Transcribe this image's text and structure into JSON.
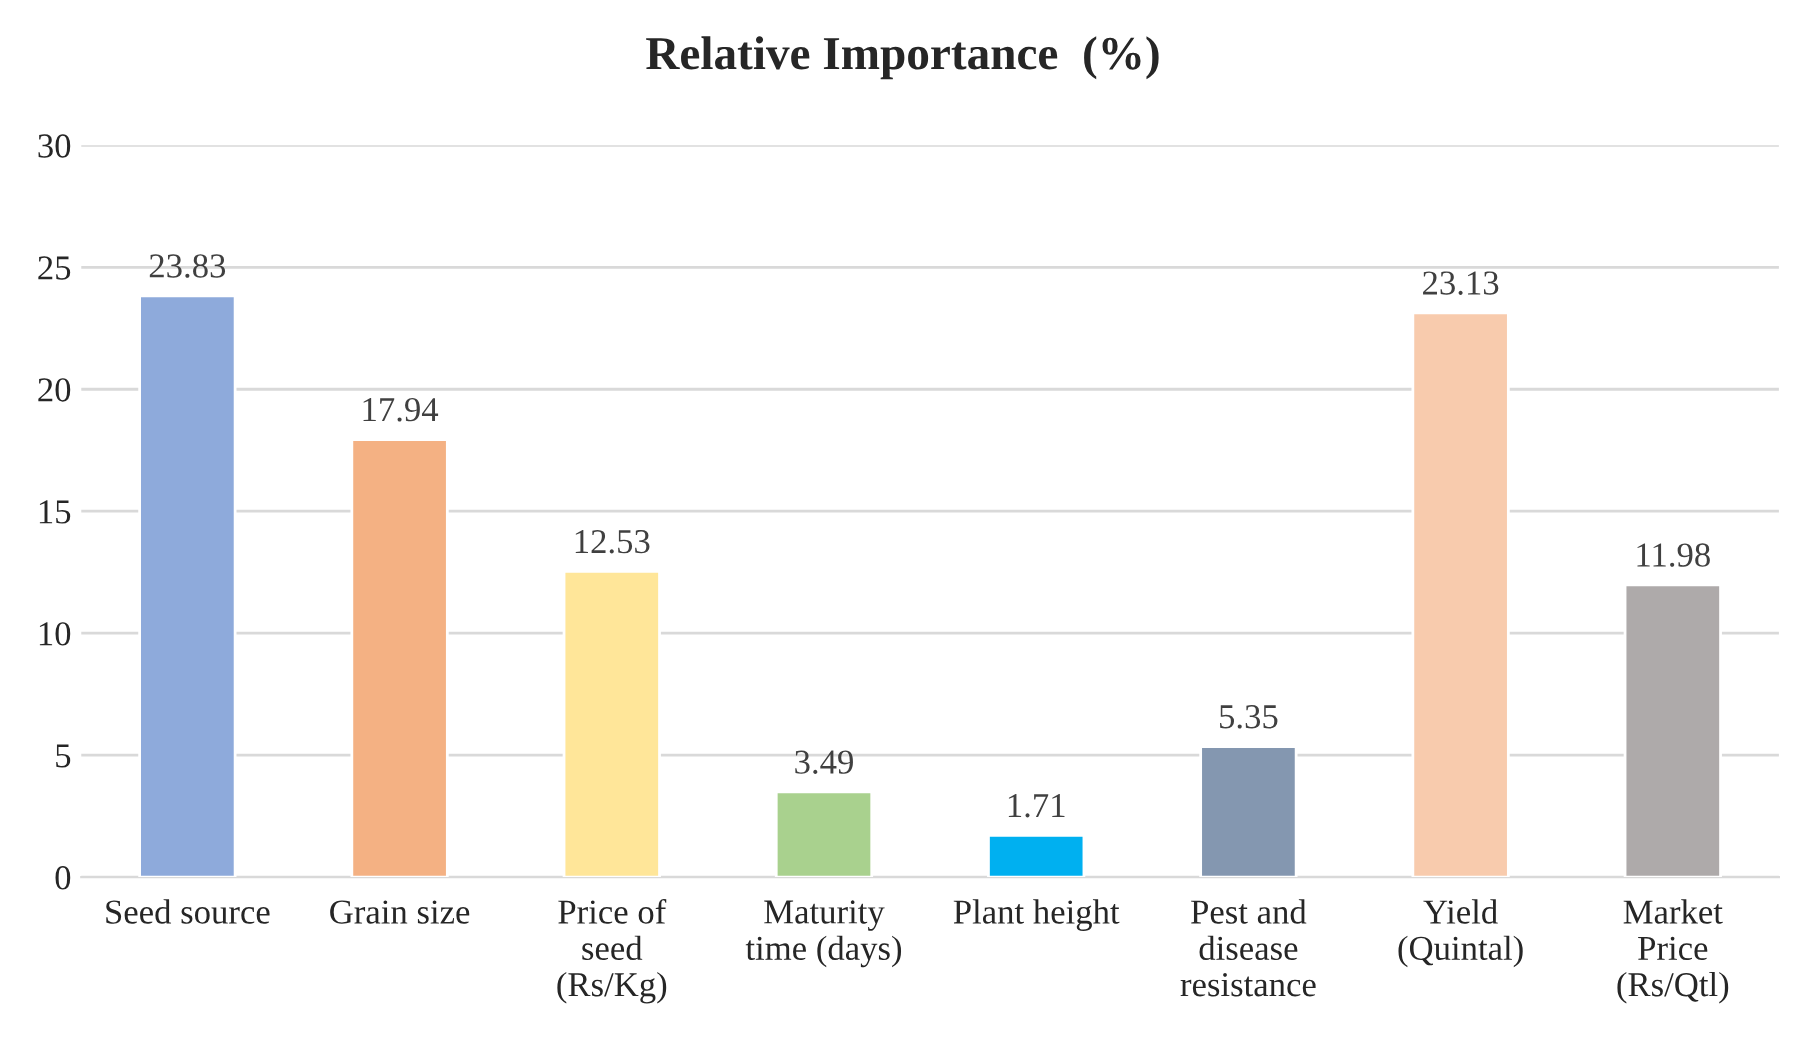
{
  "chart_data": {
    "type": "bar",
    "title": "Relative Importance  (%)",
    "categories": [
      "Seed source",
      "Grain size",
      "Price of\nseed\n(Rs/Kg)",
      "Maturity\ntime (days)",
      "Plant height",
      "Pest and\ndisease\nresistance",
      "Yield\n(Quintal)",
      "Market\nPrice\n(Rs/Qtl)"
    ],
    "values": [
      23.83,
      17.94,
      12.53,
      3.49,
      1.71,
      5.35,
      23.13,
      11.98
    ],
    "colors": [
      "#8eaadb",
      "#f4b183",
      "#ffe699",
      "#a9d18e",
      "#00b0f0",
      "#8497b0",
      "#f8cbad",
      "#aeaaaa"
    ],
    "ylim": [
      0,
      30
    ],
    "yticks": [
      0,
      5,
      10,
      15,
      20,
      25,
      30
    ],
    "grid": "y",
    "data_labels": true
  }
}
